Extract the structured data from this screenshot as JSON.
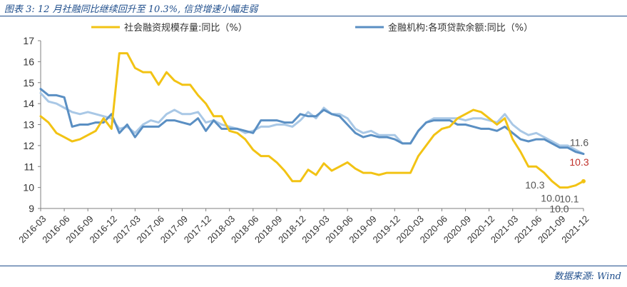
{
  "header": {
    "title": "图表 3:  12 月社融同比继续回升至 10.3%,  信贷增速小幅走弱"
  },
  "footer": {
    "source": "数据来源:  Wind"
  },
  "chart_data": {
    "type": "line",
    "title": "",
    "xlabel": "",
    "ylabel": "",
    "ylim": [
      9,
      17
    ],
    "yticks": [
      9,
      10,
      11,
      12,
      13,
      14,
      15,
      16,
      17
    ],
    "grid": false,
    "legend_position": "top",
    "x": [
      "2016-03",
      "2016-04",
      "2016-05",
      "2016-06",
      "2016-07",
      "2016-08",
      "2016-09",
      "2016-10",
      "2016-11",
      "2016-12",
      "2017-01",
      "2017-02",
      "2017-03",
      "2017-04",
      "2017-05",
      "2017-06",
      "2017-07",
      "2017-08",
      "2017-09",
      "2017-10",
      "2017-11",
      "2017-12",
      "2018-01",
      "2018-02",
      "2018-03",
      "2018-04",
      "2018-05",
      "2018-06",
      "2018-07",
      "2018-08",
      "2018-09",
      "2018-10",
      "2018-11",
      "2018-12",
      "2019-01",
      "2019-02",
      "2019-03",
      "2019-04",
      "2019-05",
      "2019-06",
      "2019-07",
      "2019-08",
      "2019-09",
      "2019-10",
      "2019-11",
      "2019-12",
      "2020-01",
      "2020-02",
      "2020-03",
      "2020-04",
      "2020-05",
      "2020-06",
      "2020-07",
      "2020-08",
      "2020-09",
      "2020-10",
      "2020-11",
      "2020-12",
      "2021-01",
      "2021-02",
      "2021-03",
      "2021-04",
      "2021-05",
      "2021-06",
      "2021-07",
      "2021-08",
      "2021-09",
      "2021-10",
      "2021-11",
      "2021-12"
    ],
    "xtick_labels": [
      "2016-03",
      "2016-06",
      "2016-09",
      "2016-12",
      "2017-03",
      "2017-06",
      "2017-09",
      "2017-12",
      "2018-03",
      "2018-06",
      "2018-09",
      "2018-12",
      "2019-03",
      "2019-06",
      "2019-09",
      "2019-12",
      "2020-03",
      "2020-06",
      "2020-09",
      "2020-12",
      "2021-03",
      "2021-06",
      "2021-09",
      "2021-12"
    ],
    "series": [
      {
        "name": "社会融资规模存量:同比（%）",
        "color": "#F2C314",
        "values": [
          13.4,
          13.1,
          12.6,
          12.4,
          12.2,
          12.3,
          12.5,
          12.7,
          13.3,
          12.8,
          16.4,
          16.4,
          15.7,
          15.5,
          15.5,
          14.9,
          15.5,
          15.1,
          14.9,
          14.9,
          14.4,
          14.0,
          13.4,
          13.4,
          12.7,
          12.6,
          12.3,
          11.8,
          11.5,
          11.5,
          11.2,
          10.8,
          10.3,
          10.3,
          10.85,
          10.6,
          11.15,
          10.8,
          11.0,
          11.2,
          10.9,
          10.7,
          10.7,
          10.6,
          10.7,
          10.7,
          10.7,
          10.7,
          11.5,
          12.0,
          12.5,
          12.8,
          12.9,
          13.3,
          13.5,
          13.7,
          13.6,
          13.3,
          13.0,
          13.3,
          12.3,
          11.7,
          11.0,
          11.0,
          10.7,
          10.3,
          10.0,
          10.0,
          10.1,
          10.3
        ],
        "annotations": [
          {
            "index": 65,
            "label": "10.3"
          },
          {
            "index": 66,
            "label": "10.0"
          },
          {
            "index": 67,
            "label": "10.0"
          },
          {
            "index": 68,
            "label": "10.1"
          },
          {
            "index": 69,
            "label": "10.3"
          }
        ]
      },
      {
        "name": "金融机构:各项贷款余额:同比（%）",
        "color": "#5A8FC3",
        "values": [
          14.7,
          14.4,
          14.4,
          14.3,
          12.9,
          13.0,
          13.0,
          13.1,
          13.1,
          13.5,
          12.6,
          13.0,
          12.4,
          12.9,
          12.9,
          12.9,
          13.2,
          13.2,
          13.1,
          13.0,
          13.3,
          12.7,
          13.2,
          12.8,
          12.8,
          12.8,
          12.7,
          12.6,
          13.2,
          13.2,
          13.2,
          13.1,
          13.1,
          13.5,
          13.4,
          13.4,
          13.7,
          13.5,
          13.4,
          13.0,
          12.6,
          12.4,
          12.5,
          12.4,
          12.4,
          12.3,
          12.1,
          12.1,
          12.7,
          13.1,
          13.2,
          13.2,
          13.2,
          13.0,
          13.0,
          12.9,
          12.8,
          12.8,
          12.7,
          12.9,
          12.6,
          12.3,
          12.2,
          12.3,
          12.3,
          12.1,
          11.9,
          11.9,
          11.7,
          11.6
        ],
        "annotations": []
      },
      {
        "name": "",
        "color": "#A9C8E6",
        "values": [
          14.5,
          14.1,
          14.0,
          13.8,
          13.6,
          13.5,
          13.6,
          13.5,
          13.4,
          13.3,
          12.8,
          12.9,
          12.6,
          13.0,
          13.2,
          13.1,
          13.5,
          13.7,
          13.5,
          13.5,
          13.6,
          13.1,
          13.2,
          13.0,
          12.9,
          12.8,
          12.6,
          12.7,
          12.9,
          12.9,
          13.0,
          13.0,
          12.9,
          13.2,
          13.6,
          13.3,
          13.8,
          13.5,
          13.5,
          13.3,
          12.8,
          12.6,
          12.7,
          12.5,
          12.5,
          12.5,
          12.1,
          12.1,
          12.7,
          13.1,
          13.3,
          13.3,
          13.3,
          13.3,
          13.2,
          13.3,
          13.3,
          13.2,
          13.1,
          13.5,
          13.0,
          12.7,
          12.5,
          12.6,
          12.4,
          12.2,
          12.0,
          12.0,
          11.8,
          11.6
        ],
        "annotations": [
          {
            "index": 69,
            "label": "11.6"
          }
        ]
      }
    ]
  }
}
